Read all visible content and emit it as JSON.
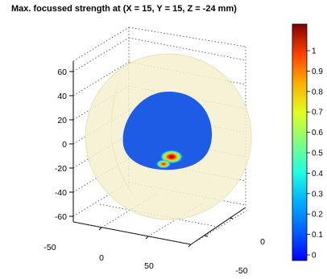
{
  "chart_data": {
    "type": "heatmap",
    "title": "Max. focussed strength at (X = 15, Y = 15, Z = -24 mm)",
    "z_axis": {
      "ticks": [
        "60",
        "40",
        "20",
        "0",
        "-20",
        "-40",
        "-60"
      ]
    },
    "x_axis": {
      "ticks": [
        "-50",
        "0",
        "50"
      ]
    },
    "y_axis": {
      "ticks": [
        "0",
        "-50"
      ]
    },
    "colorbar": {
      "ticks": [
        "1",
        "0.9",
        "0.8",
        "0.7",
        "0.6",
        "0.5",
        "0.4",
        "0.3",
        "0.2",
        "0.1",
        "0"
      ],
      "range": [
        0,
        1
      ],
      "colormap": "jet"
    },
    "focus_point": {
      "x": 15,
      "y": 15,
      "z": -24,
      "value": 1.0
    },
    "background_value": 0.08,
    "colors": {
      "outer_sphere": "#f2efcc",
      "inner_surface": "#1f5ce6",
      "hotspot_core": "#8b0000"
    }
  }
}
